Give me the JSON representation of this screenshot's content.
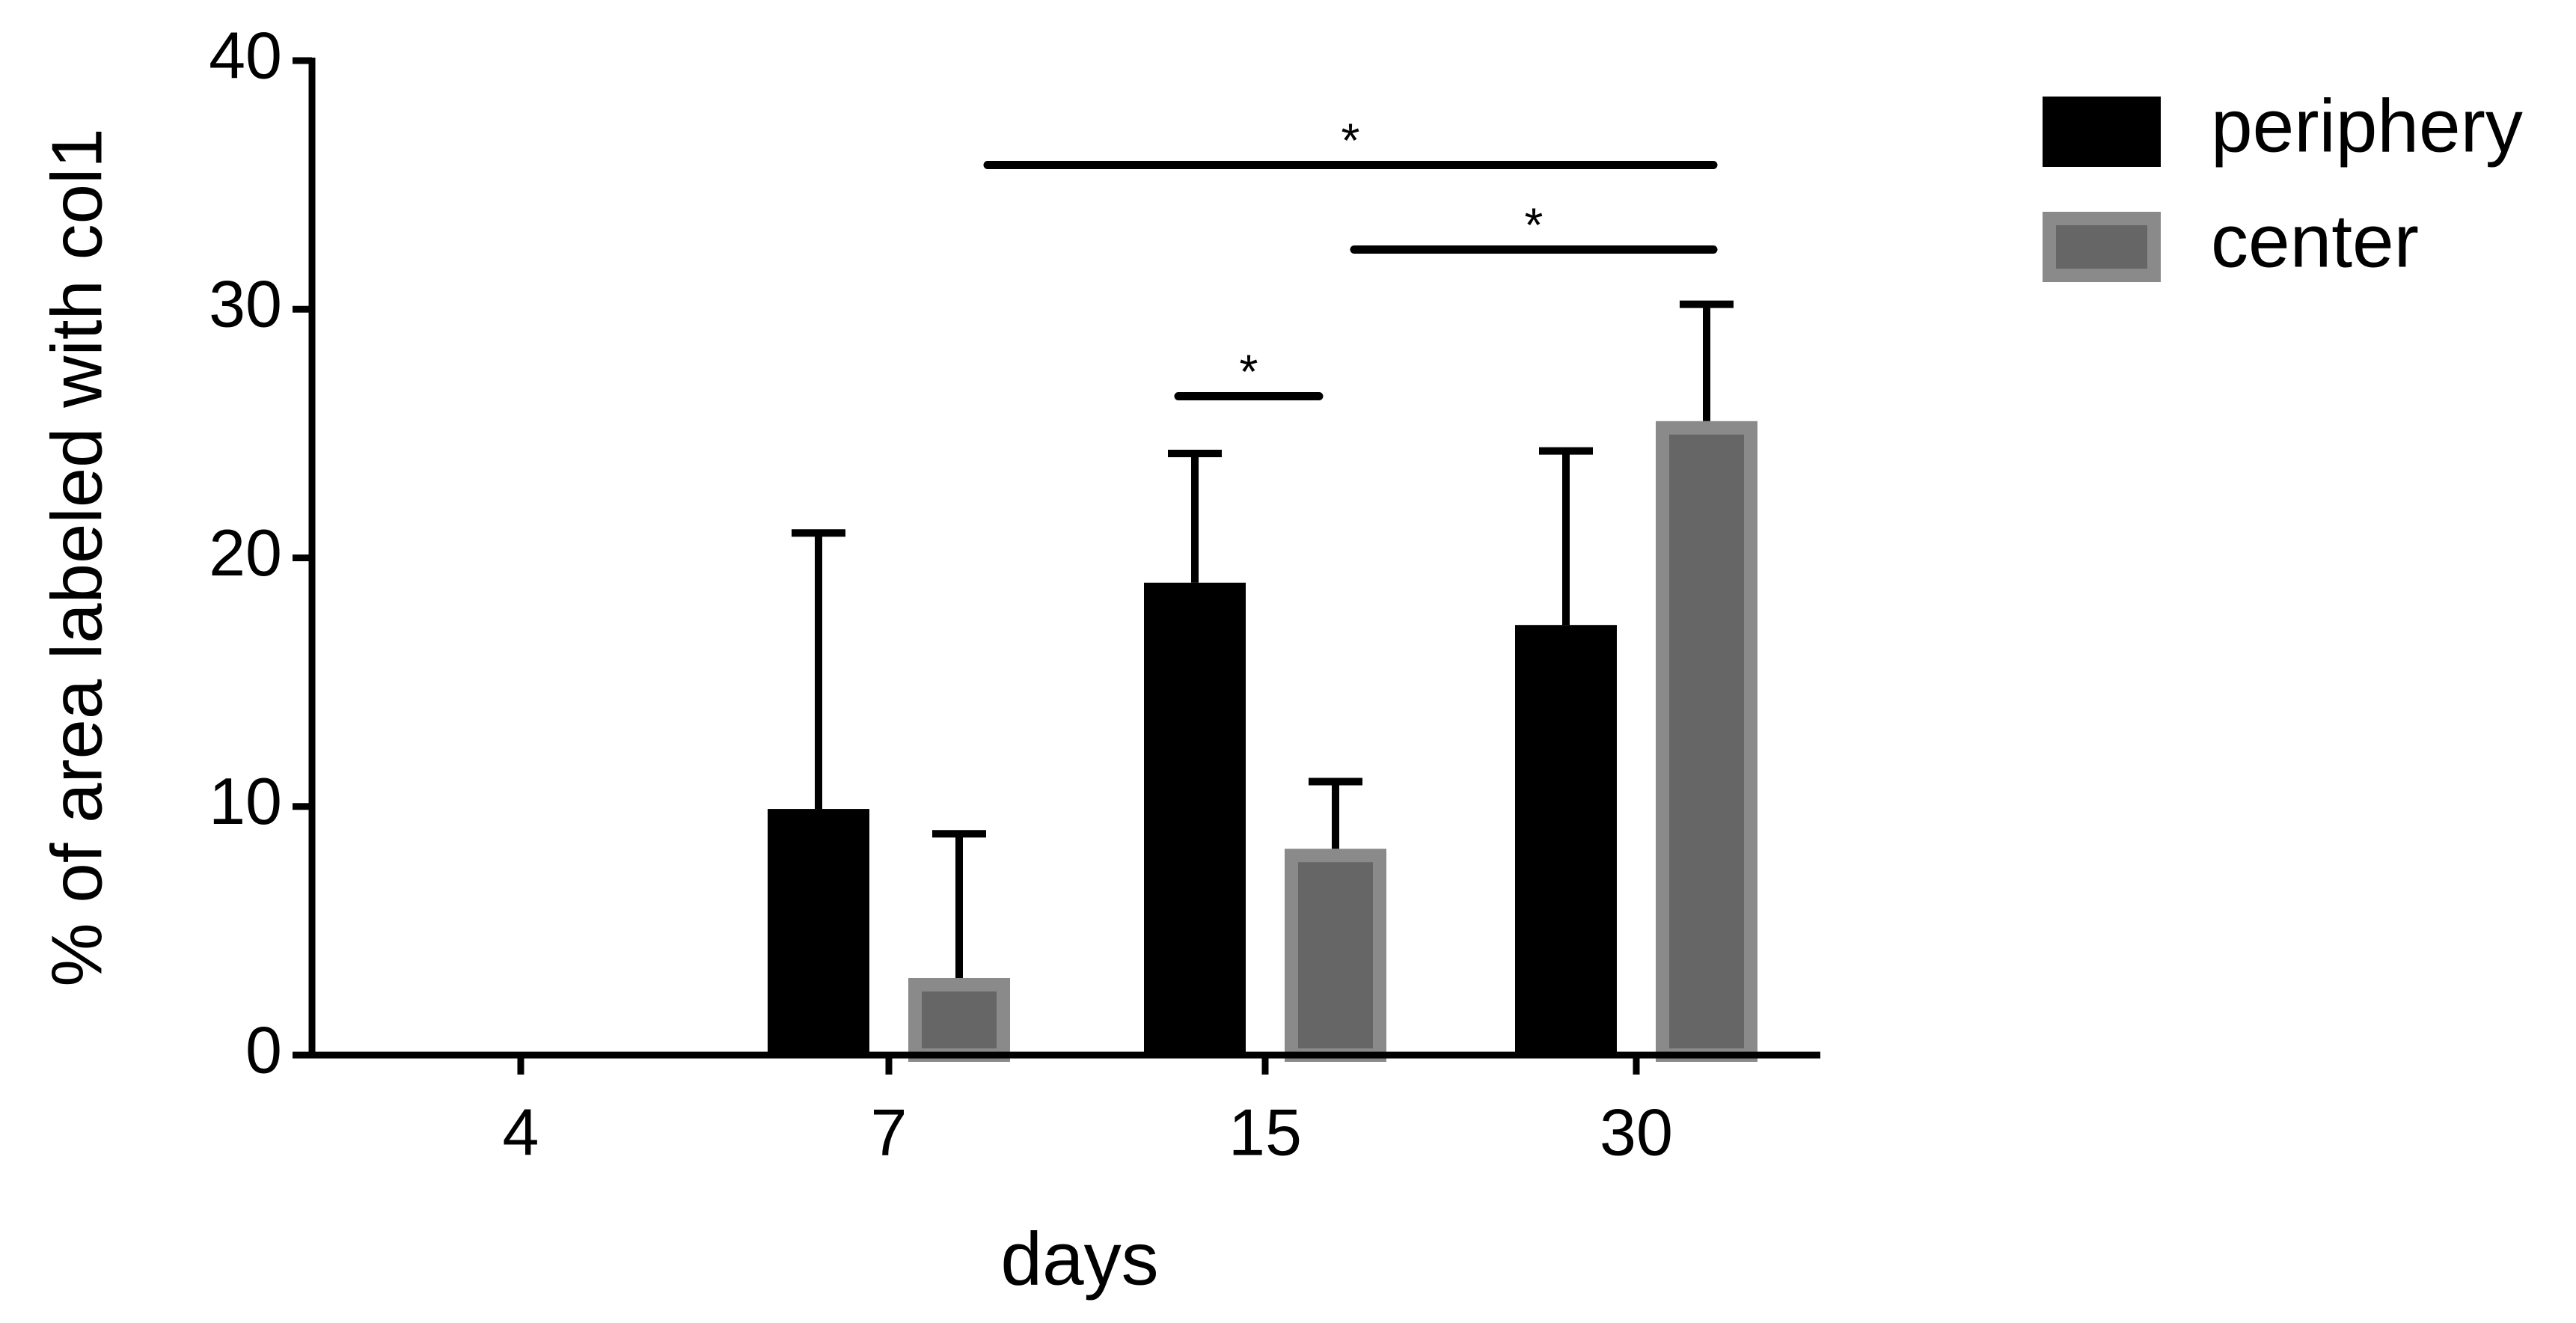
{
  "chart_data": {
    "type": "bar",
    "x_label": "days",
    "y_label": "% of area labeled with col1",
    "categories": [
      "4",
      "7",
      "15",
      "30"
    ],
    "series": [
      {
        "name": "periphery",
        "color": "#000000",
        "values": [
          null,
          9.9,
          19.0,
          17.3
        ],
        "errors": [
          null,
          11.1,
          5.2,
          7.0
        ]
      },
      {
        "name": "center",
        "color": "#666666",
        "values": [
          null,
          3.1,
          8.3,
          25.5
        ],
        "errors": [
          null,
          5.8,
          2.7,
          4.7
        ]
      }
    ],
    "ylim": [
      0,
      40
    ],
    "yticks": [
      0,
      10,
      20,
      30,
      40
    ],
    "legend": "top-right",
    "annotations": [
      {
        "text": "*",
        "y": 35.8
      },
      {
        "text": "*",
        "y": 32.4
      },
      {
        "text": "*",
        "y": 26.5
      }
    ]
  }
}
